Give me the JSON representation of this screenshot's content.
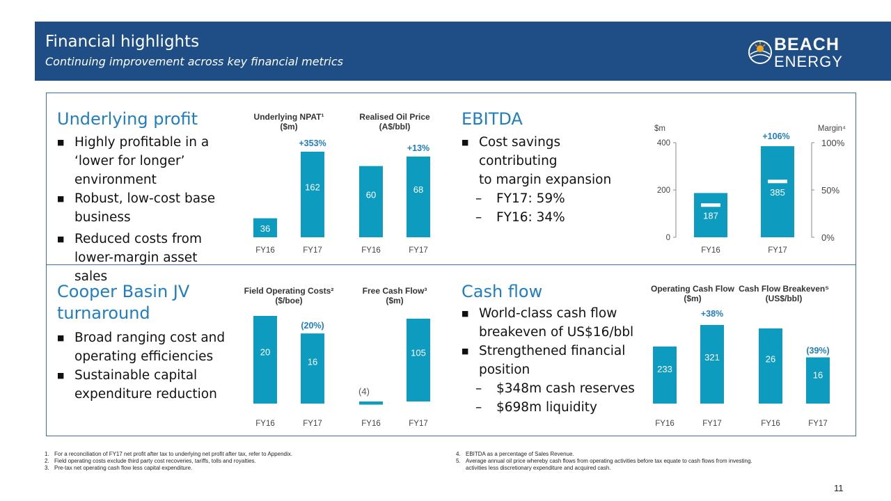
{
  "header": {
    "title": "Financial highlights",
    "subtitle": "Continuing improvement across key financial metrics",
    "logo_line1": "BEACH",
    "logo_line2": "ENERGY"
  },
  "colors": {
    "header_bg": "#1f4e86",
    "bar": "#0e9bc0",
    "accent_text": "#1f7ec1"
  },
  "profit": {
    "title": "Underlying profit",
    "bullets": [
      [
        "Highly profitable in a",
        "‘lower for longer’",
        "environment"
      ],
      [
        "Robust, low-cost base",
        "business"
      ],
      [
        "Reduced costs from",
        "lower-margin asset sales"
      ]
    ]
  },
  "ebitda": {
    "title": "EBITDA",
    "bullet": [
      "Cost savings contributing",
      "to margin expansion"
    ],
    "dashes": [
      "FY17: 59%",
      "FY16: 34%"
    ]
  },
  "cooper": {
    "title_lines": [
      "Cooper Basin JV",
      "turnaround"
    ],
    "bullets": [
      [
        "Broad ranging cost and",
        "operating efficiencies"
      ],
      [
        "Sustainable capital",
        "expenditure reduction"
      ]
    ]
  },
  "cashflow": {
    "title": "Cash flow",
    "bullets": [
      [
        "World-class cash flow",
        "breakeven of US$16/bbl"
      ],
      [
        "Strengthened financial",
        "position"
      ]
    ],
    "dashes": [
      "$348m cash reserves",
      "$698m liquidity"
    ]
  },
  "chart_data": [
    {
      "type": "bar",
      "title": "Underlying NPAT¹ ($m)",
      "categories": [
        "FY16",
        "FY17"
      ],
      "values": [
        36,
        162
      ],
      "labels": [
        "36",
        "162"
      ],
      "change": "+353%"
    },
    {
      "type": "bar",
      "title": "Realised Oil Price (A$/bbl)",
      "categories": [
        "FY16",
        "FY17"
      ],
      "values": [
        60,
        68
      ],
      "labels": [
        "60",
        "68"
      ],
      "change": "+13%"
    },
    {
      "type": "bar",
      "title": "EBITDA",
      "categories": [
        "FY16",
        "FY17"
      ],
      "values": [
        187,
        385
      ],
      "labels": [
        "187",
        "385"
      ],
      "change": "+106%",
      "left_axis_label": "$m",
      "right_axis_label": "Margin⁴",
      "ylim": [
        0,
        400
      ],
      "yticks": [
        "0",
        "200",
        "400"
      ],
      "margin_ticks": [
        "0%",
        "50%",
        "100%"
      ],
      "margin_values": [
        0.34,
        0.59
      ]
    },
    {
      "type": "bar",
      "title": "Field Operating Costs² ($/boe)",
      "categories": [
        "FY16",
        "FY17"
      ],
      "values": [
        20,
        16
      ],
      "labels": [
        "20",
        "16"
      ],
      "change": "(20%)"
    },
    {
      "type": "bar",
      "title": "Free Cash Flow³ ($m)",
      "categories": [
        "FY16",
        "FY17"
      ],
      "values": [
        -4,
        105
      ],
      "labels": [
        "(4)",
        "105"
      ]
    },
    {
      "type": "bar",
      "title": "Operating Cash Flow ($m)",
      "categories": [
        "FY16",
        "FY17"
      ],
      "values": [
        233,
        321
      ],
      "labels": [
        "233",
        "321"
      ],
      "change": "+38%"
    },
    {
      "type": "bar",
      "title": "Cash Flow Breakeven⁵ (US$/bbl)",
      "categories": [
        "FY16",
        "FY17"
      ],
      "values": [
        26,
        16
      ],
      "labels": [
        "26",
        "16"
      ],
      "change": "(39%)"
    }
  ],
  "footnotes_left": [
    [
      "1.",
      "For a reconciliation of FY17 net profit after tax to underlying net profit after tax, refer to Appendix."
    ],
    [
      "2.",
      "Field operating costs exclude third party cost recoveries, tariffs, tolls and royalties."
    ],
    [
      "3.",
      "Pre-tax net operating cash flow less capital expenditure."
    ]
  ],
  "footnotes_right": [
    [
      "4.",
      "EBITDA as a percentage of Sales Revenue."
    ],
    [
      "5.",
      "Average annual oil price whereby cash flows from operating activities before tax equate to cash flows from investing."
    ],
    [
      "",
      "activities less discretionary expenditure and acquired cash."
    ]
  ],
  "page_number": "11"
}
